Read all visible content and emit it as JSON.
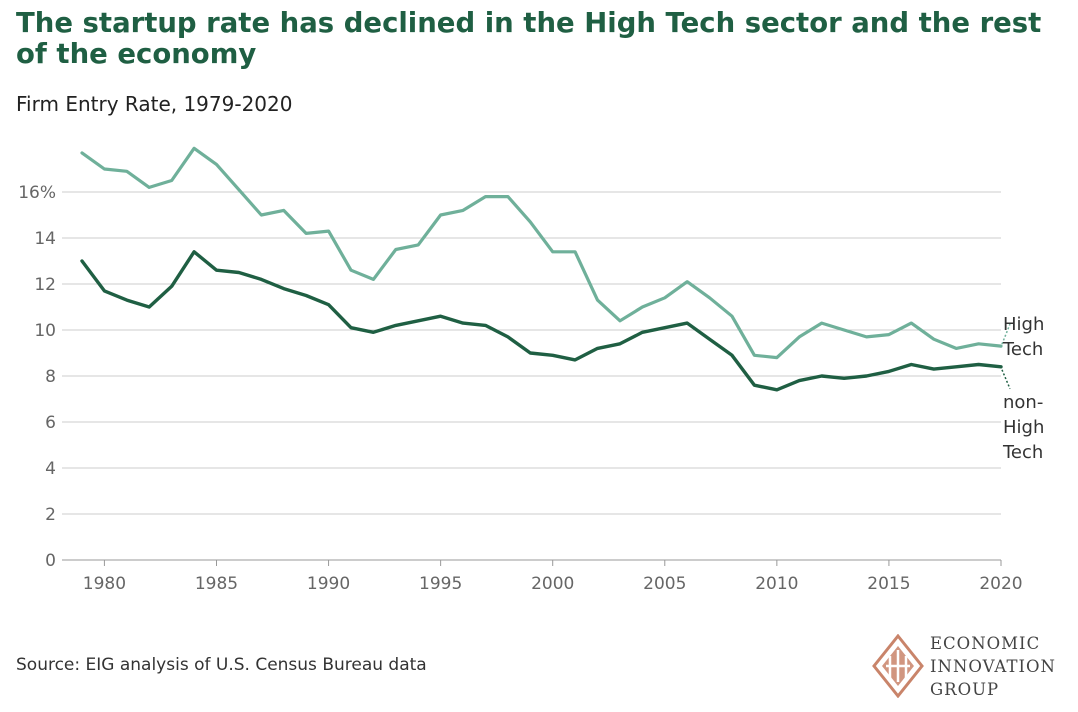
{
  "header": {
    "title": "The startup rate has declined in the High Tech sector and the rest of the economy",
    "subtitle": "Firm Entry Rate, 1979-2020"
  },
  "footer": {
    "source": "Source: EIG analysis of U.S. Census Bureau data"
  },
  "logo": {
    "line1": "ECONOMIC",
    "line2": "INNOVATION",
    "line3": "GROUP"
  },
  "colors": {
    "high_tech": "#6fb09a",
    "non_high_tech": "#1f5f43",
    "grid": "#cccccc",
    "tick_text": "#666666",
    "logo_accent": "#c9846a"
  },
  "chart_data": {
    "type": "line",
    "x": [
      1979,
      1980,
      1981,
      1982,
      1983,
      1984,
      1985,
      1986,
      1987,
      1988,
      1989,
      1990,
      1991,
      1992,
      1993,
      1994,
      1995,
      1996,
      1997,
      1998,
      1999,
      2000,
      2001,
      2002,
      2003,
      2004,
      2005,
      2006,
      2007,
      2008,
      2009,
      2010,
      2011,
      2012,
      2013,
      2014,
      2015,
      2016,
      2017,
      2018,
      2019,
      2020
    ],
    "series": [
      {
        "name": "High Tech",
        "color": "#6fb09a",
        "values": [
          17.7,
          17.0,
          16.9,
          16.2,
          16.5,
          17.9,
          17.2,
          16.1,
          15.0,
          15.2,
          14.2,
          14.3,
          12.6,
          12.2,
          13.5,
          13.7,
          15.0,
          15.2,
          15.8,
          15.8,
          14.7,
          13.4,
          13.4,
          11.3,
          10.4,
          11.0,
          11.4,
          12.1,
          11.4,
          10.6,
          8.9,
          8.8,
          9.7,
          10.3,
          10.0,
          9.7,
          9.8,
          10.3,
          9.6,
          9.2,
          9.4,
          9.3
        ]
      },
      {
        "name": "non-High Tech",
        "color": "#1f5f43",
        "values": [
          13.0,
          11.7,
          11.3,
          11.0,
          11.9,
          13.4,
          12.6,
          12.5,
          12.2,
          11.8,
          11.5,
          11.1,
          10.1,
          9.9,
          10.2,
          10.4,
          10.6,
          10.3,
          10.2,
          9.7,
          9.0,
          8.9,
          8.7,
          9.2,
          9.4,
          9.9,
          10.1,
          10.3,
          9.6,
          8.9,
          7.6,
          7.4,
          7.8,
          8.0,
          7.9,
          8.0,
          8.2,
          8.5,
          8.3,
          8.4,
          8.5,
          8.4
        ]
      }
    ],
    "series_labels": [
      {
        "series": "High Tech",
        "lines": [
          "High",
          "Tech"
        ]
      },
      {
        "series": "non-High Tech",
        "lines": [
          "non-",
          "High",
          "Tech"
        ]
      }
    ],
    "ylim": [
      0,
      18
    ],
    "yticks": [
      0,
      2,
      4,
      6,
      8,
      10,
      12,
      14,
      16
    ],
    "ytick_labels": [
      "0",
      "2",
      "4",
      "6",
      "8",
      "10",
      "12",
      "14",
      "16%"
    ],
    "xticks": [
      1980,
      1985,
      1990,
      1995,
      2000,
      2005,
      2010,
      2015,
      2020
    ],
    "xtick_labels": [
      "1980",
      "1985",
      "1990",
      "1995",
      "2000",
      "2005",
      "2010",
      "2015",
      "2020"
    ],
    "xlabel": "",
    "ylabel": "",
    "grid": true,
    "legend": "direct-labels-right"
  }
}
